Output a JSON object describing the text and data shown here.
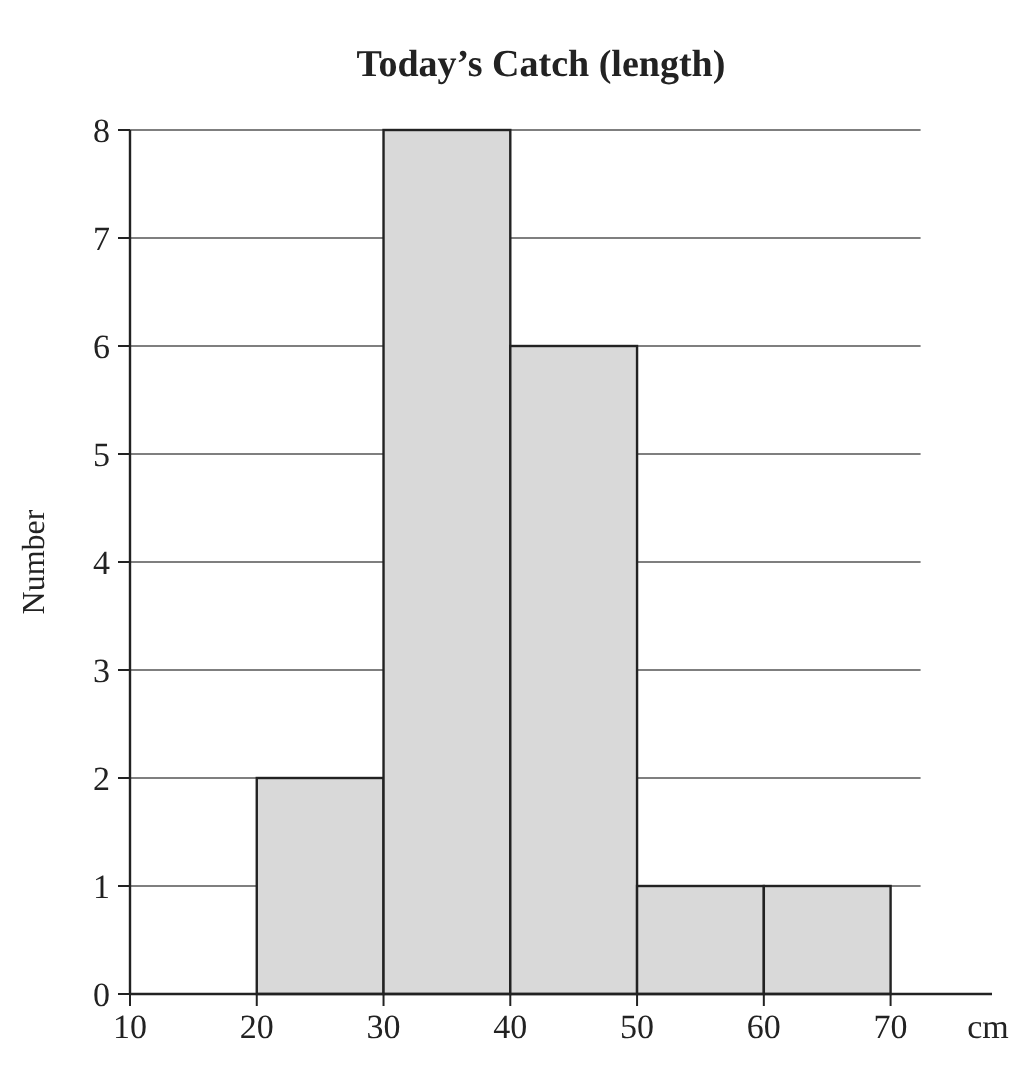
{
  "chart_data": {
    "type": "histogram",
    "title": "Today’s Catch (length)",
    "xlabel": "cm",
    "ylabel": "Number",
    "bins": [
      20,
      30,
      40,
      50,
      60,
      70
    ],
    "values": [
      2,
      8,
      6,
      1,
      1
    ],
    "color": "#d9d9d9",
    "xlim": [
      10,
      78
    ],
    "xticks": [
      10,
      20,
      30,
      40,
      50,
      60,
      70
    ],
    "ylim": [
      0,
      8
    ],
    "yticks": [
      0,
      1,
      2,
      3,
      4,
      5,
      6,
      7,
      8
    ],
    "grid": "y"
  }
}
